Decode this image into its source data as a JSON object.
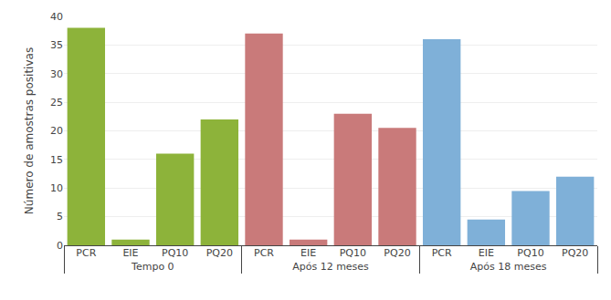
{
  "chart_data": {
    "type": "bar",
    "ylabel": "Número de amostras positivas",
    "categories": [
      "PCR",
      "EIE",
      "PQ10",
      "PQ20"
    ],
    "series": [
      {
        "name": "Tempo 0",
        "color": "#8db33a",
        "values": [
          38,
          1,
          16,
          22
        ]
      },
      {
        "name": "Após 12 meses",
        "color": "#c97a7a",
        "values": [
          37,
          1,
          23,
          20.5
        ]
      },
      {
        "name": "Após 18 meses",
        "color": "#7fb0d8",
        "values": [
          36,
          4.5,
          9.5,
          12
        ]
      }
    ],
    "ylim": [
      0,
      40
    ],
    "yticks": [
      0,
      5,
      10,
      15,
      20,
      25,
      30,
      35,
      40
    ],
    "grid": true
  }
}
